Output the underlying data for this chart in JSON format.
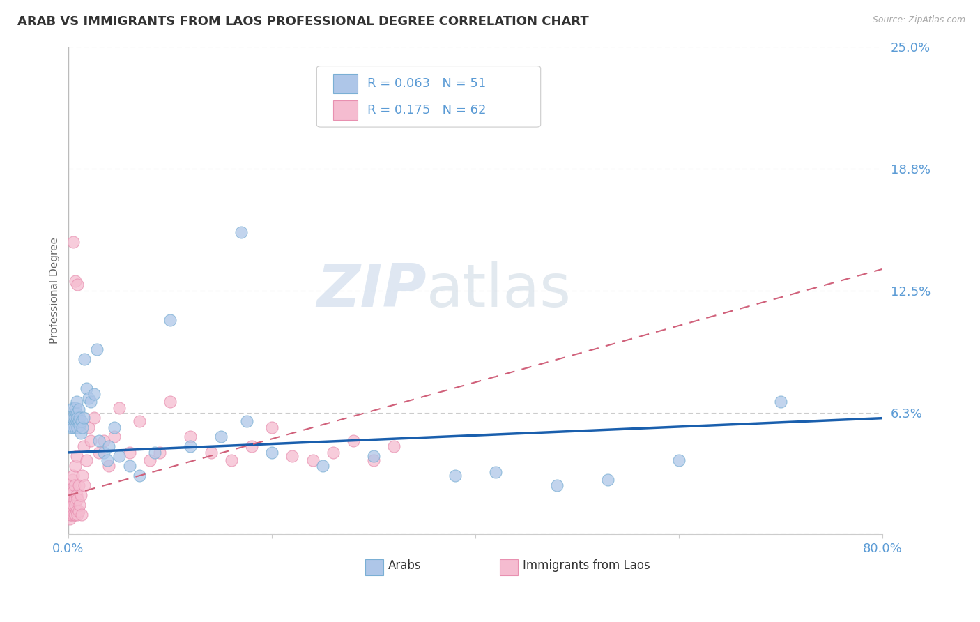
{
  "title": "ARAB VS IMMIGRANTS FROM LAOS PROFESSIONAL DEGREE CORRELATION CHART",
  "source": "Source: ZipAtlas.com",
  "ylabel": "Professional Degree",
  "xlim": [
    0.0,
    0.8
  ],
  "ylim": [
    0.0,
    0.25
  ],
  "yticks": [
    0.0,
    0.0625,
    0.125,
    0.1875,
    0.25
  ],
  "ytick_labels": [
    "",
    "6.3%",
    "12.5%",
    "18.8%",
    "25.0%"
  ],
  "grid_color": "#cccccc",
  "background_color": "#ffffff",
  "arab_color": "#aec6e8",
  "laos_color": "#f5bcd0",
  "arab_edge_color": "#7aafd4",
  "laos_edge_color": "#e890b0",
  "arab_line_color": "#1a5fad",
  "laos_line_color": "#d0607a",
  "tick_color": "#5b9bd5",
  "title_color": "#333333",
  "title_fontsize": 13,
  "legend_R_arab": "R = 0.063",
  "legend_N_arab": "N = 51",
  "legend_R_laos": "R = 0.175",
  "legend_N_laos": "N = 62",
  "arab_line_intercept": 0.042,
  "arab_line_slope": 0.022,
  "laos_line_intercept": 0.02,
  "laos_line_slope": 0.145,
  "watermark_zip": "ZIP",
  "watermark_atlas": "atlas",
  "arab_scatter_x": [
    0.003,
    0.004,
    0.005,
    0.005,
    0.006,
    0.006,
    0.007,
    0.007,
    0.007,
    0.008,
    0.008,
    0.008,
    0.009,
    0.009,
    0.01,
    0.01,
    0.011,
    0.011,
    0.012,
    0.013,
    0.014,
    0.015,
    0.016,
    0.018,
    0.02,
    0.022,
    0.025,
    0.028,
    0.03,
    0.035,
    0.038,
    0.04,
    0.045,
    0.05,
    0.06,
    0.07,
    0.085,
    0.1,
    0.12,
    0.15,
    0.175,
    0.2,
    0.25,
    0.3,
    0.38,
    0.42,
    0.48,
    0.53,
    0.6,
    0.7,
    0.17
  ],
  "arab_scatter_y": [
    0.055,
    0.06,
    0.055,
    0.065,
    0.058,
    0.062,
    0.055,
    0.06,
    0.065,
    0.058,
    0.062,
    0.068,
    0.055,
    0.06,
    0.058,
    0.064,
    0.056,
    0.06,
    0.052,
    0.058,
    0.055,
    0.06,
    0.09,
    0.075,
    0.07,
    0.068,
    0.072,
    0.095,
    0.048,
    0.042,
    0.038,
    0.045,
    0.055,
    0.04,
    0.035,
    0.03,
    0.042,
    0.11,
    0.045,
    0.05,
    0.058,
    0.042,
    0.035,
    0.04,
    0.03,
    0.032,
    0.025,
    0.028,
    0.038,
    0.068,
    0.155
  ],
  "laos_scatter_x": [
    0.001,
    0.001,
    0.002,
    0.002,
    0.002,
    0.003,
    0.003,
    0.003,
    0.004,
    0.004,
    0.004,
    0.005,
    0.005,
    0.005,
    0.005,
    0.006,
    0.006,
    0.006,
    0.007,
    0.007,
    0.007,
    0.008,
    0.008,
    0.008,
    0.009,
    0.009,
    0.01,
    0.01,
    0.011,
    0.012,
    0.013,
    0.014,
    0.015,
    0.016,
    0.018,
    0.02,
    0.022,
    0.025,
    0.03,
    0.035,
    0.04,
    0.045,
    0.05,
    0.06,
    0.07,
    0.08,
    0.09,
    0.1,
    0.12,
    0.14,
    0.16,
    0.18,
    0.2,
    0.22,
    0.24,
    0.26,
    0.28,
    0.3,
    0.32,
    0.005,
    0.007,
    0.009
  ],
  "laos_scatter_y": [
    0.008,
    0.015,
    0.01,
    0.018,
    0.025,
    0.01,
    0.015,
    0.02,
    0.012,
    0.018,
    0.028,
    0.01,
    0.015,
    0.022,
    0.03,
    0.01,
    0.018,
    0.025,
    0.01,
    0.015,
    0.035,
    0.012,
    0.02,
    0.04,
    0.01,
    0.018,
    0.012,
    0.025,
    0.015,
    0.02,
    0.01,
    0.03,
    0.045,
    0.025,
    0.038,
    0.055,
    0.048,
    0.06,
    0.042,
    0.048,
    0.035,
    0.05,
    0.065,
    0.042,
    0.058,
    0.038,
    0.042,
    0.068,
    0.05,
    0.042,
    0.038,
    0.045,
    0.055,
    0.04,
    0.038,
    0.042,
    0.048,
    0.038,
    0.045,
    0.15,
    0.13,
    0.128
  ]
}
